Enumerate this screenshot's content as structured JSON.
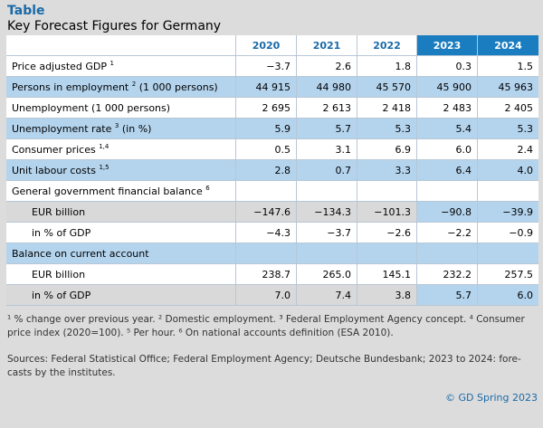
{
  "header": {
    "kicker": "Table",
    "title": "Key Forecast Figures for Germany"
  },
  "columns": [
    "2020",
    "2021",
    "2022",
    "2023",
    "2024"
  ],
  "rows": [
    {
      "label": "Price adjusted GDP",
      "sup": "1",
      "suffix": "",
      "values": [
        "−3.7",
        "2.6",
        "1.8",
        "0.3",
        "1.5"
      ]
    },
    {
      "label": "Persons in employment",
      "sup": "2",
      "suffix": " (1 000 persons)",
      "values": [
        "44 915",
        "44 980",
        "45 570",
        "45 900",
        "45 963"
      ]
    },
    {
      "label": "Unemployment (1 000 persons)",
      "sup": "",
      "suffix": "",
      "values": [
        "2 695",
        "2 613",
        "2 418",
        "2 483",
        "2 405"
      ]
    },
    {
      "label": "Unemployment rate",
      "sup": "3",
      "suffix": " (in %)",
      "values": [
        "5.9",
        "5.7",
        "5.3",
        "5.4",
        "5.3"
      ]
    },
    {
      "label": "Consumer prices",
      "sup": "1,4",
      "suffix": "",
      "values": [
        "0.5",
        "3.1",
        "6.9",
        "6.0",
        "2.4"
      ]
    },
    {
      "label": "Unit labour costs",
      "sup": "1,5",
      "suffix": "",
      "values": [
        "2.8",
        "0.7",
        "3.3",
        "6.4",
        "4.0"
      ]
    },
    {
      "label": "General government financial balance",
      "sup": "6",
      "suffix": "",
      "values": [
        "",
        "",
        "",
        "",
        ""
      ]
    },
    {
      "label": "EUR billion",
      "sup": "",
      "suffix": "",
      "values": [
        "−147.6",
        "−134.3",
        "−101.3",
        "−90.8",
        "−39.9"
      ]
    },
    {
      "label": "in % of GDP",
      "sup": "",
      "suffix": "",
      "values": [
        "−4.3",
        "−3.7",
        "−2.6",
        "−2.2",
        "−0.9"
      ]
    },
    {
      "label": "Balance on current account",
      "sup": "",
      "suffix": "",
      "values": [
        "",
        "",
        "",
        "",
        ""
      ]
    },
    {
      "label": "EUR billion",
      "sup": "",
      "suffix": "",
      "values": [
        "238.7",
        "265.0",
        "145.1",
        "232.2",
        "257.5"
      ]
    },
    {
      "label": "in % of GDP",
      "sup": "",
      "suffix": "",
      "values": [
        "7.0",
        "7.4",
        "3.8",
        "5.7",
        "6.0"
      ]
    }
  ],
  "footnotes": "¹ % change over previous year. ² Domestic employment. ³ Federal Employment Agency concept. ⁴ Consumer price index (2020=100). ⁵ Per hour. ⁶ On national accounts definition (ESA 2010).",
  "sources": "Sources: Federal Statistical Office; Federal Employment Agency; Deutsche Bundesbank; 2023 to 2024: fore-casts by the institutes.",
  "copyright": "© GD Spring 2023",
  "colors": {
    "accent": "#1a6aa8",
    "forecast_header": "#1a7dc0",
    "row_blue": "#b4d4ee",
    "row_gray": "#d9d9d9",
    "background": "#dcdcdc"
  }
}
